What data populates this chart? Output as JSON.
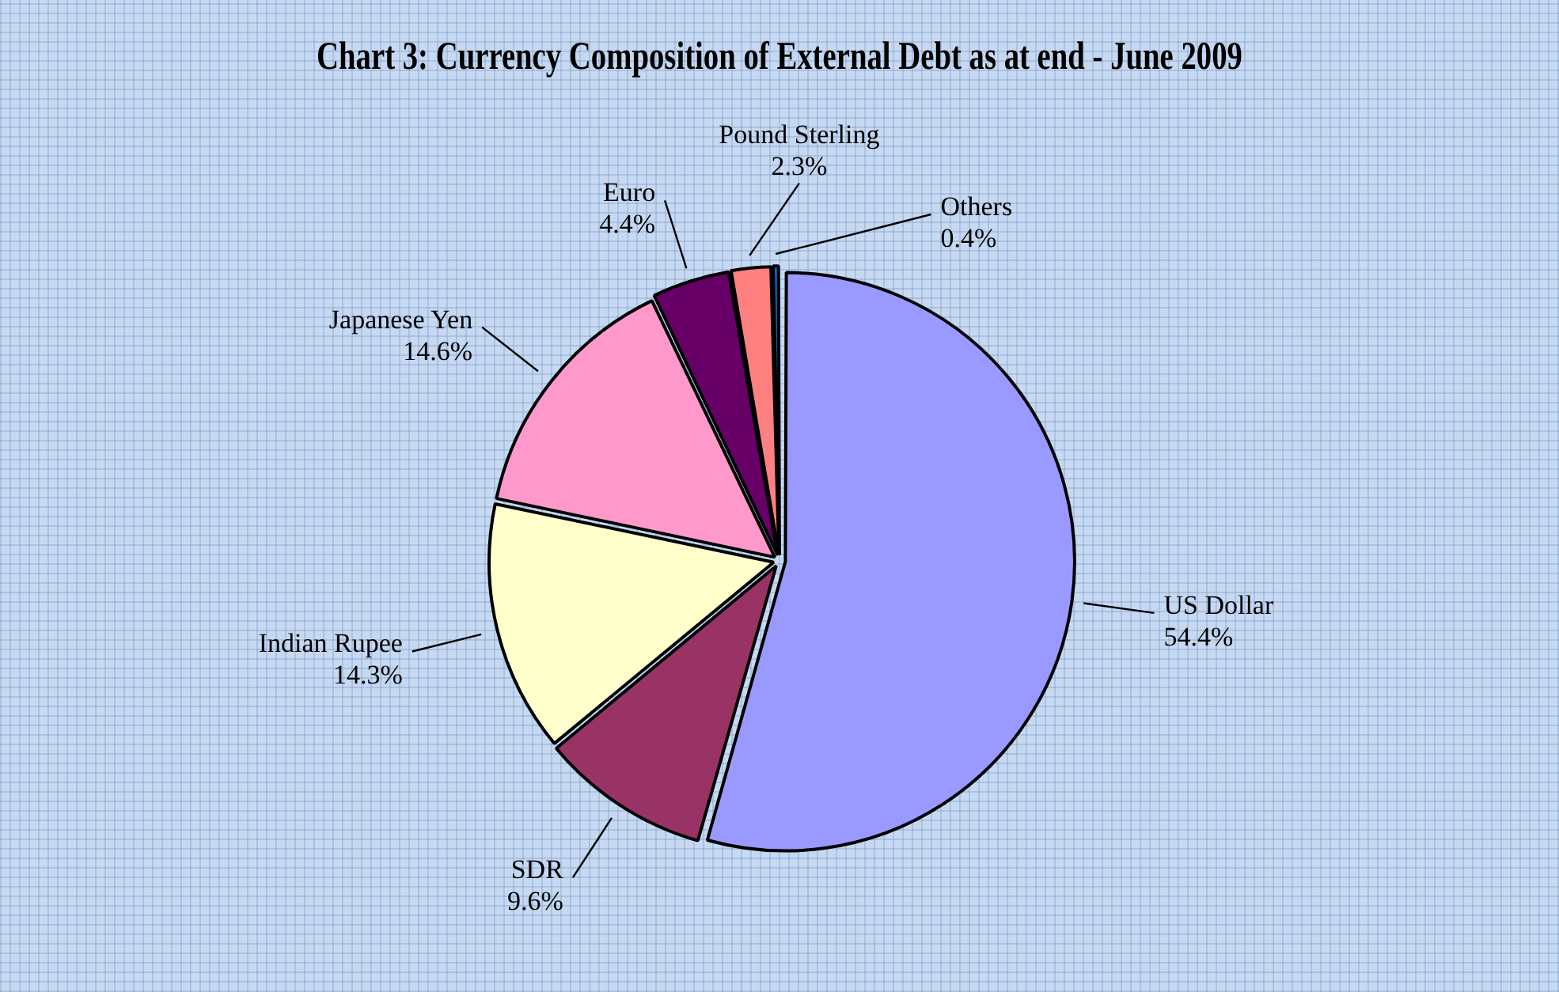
{
  "chart_data": {
    "type": "pie",
    "title": "Chart 3: Currency Composition of External Debt as at end - June 2009",
    "categories": [
      "US Dollar",
      "SDR",
      "Indian Rupee",
      "Japanese Yen",
      "Euro",
      "Pound Sterling",
      "Others"
    ],
    "values": [
      54.4,
      9.6,
      14.3,
      14.6,
      4.4,
      2.3,
      0.4
    ],
    "colors": [
      "#9999ff",
      "#993366",
      "#ffffcc",
      "#ff99cc",
      "#660066",
      "#ff8080",
      "#0066cc"
    ],
    "value_labels": [
      "54.4%",
      "9.6%",
      "14.3%",
      "14.6%",
      "4.4%",
      "2.3%",
      "0.4%"
    ],
    "legend": false
  }
}
